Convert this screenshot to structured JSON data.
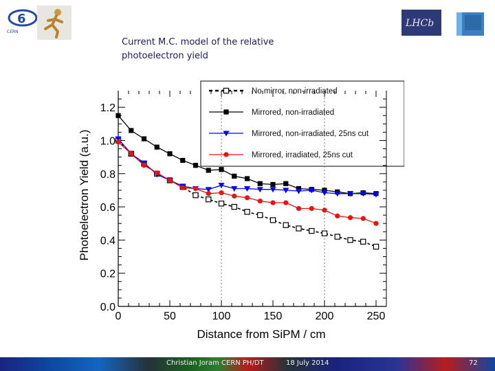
{
  "slide": {
    "title": "Current M.C. model of the relative photoelectron yield",
    "footer_author": "Christian Joram   CERN  PH/DT",
    "footer_date": "18 July 2014",
    "page_number": "72",
    "logo_lhcb_text": "LHCb",
    "logo_cern_text": "CERN"
  },
  "colors": {
    "title": "#1a1a66",
    "series_black": "#000000",
    "series_blue": "#0000ff",
    "series_red": "#ee1111"
  },
  "chart_data": {
    "type": "line",
    "title": "",
    "xlabel": "Distance from SiPM  / cm",
    "ylabel": "Photoelectron Yield (a.u.)",
    "xlim": [
      0,
      260
    ],
    "ylim": [
      0,
      1.3
    ],
    "x_ticks": [
      0,
      50,
      100,
      150,
      200,
      250
    ],
    "y_ticks": [
      "0.0",
      "0.2",
      "0.4",
      "0.6",
      "0.8",
      "1.0",
      "1.2"
    ],
    "grid": "dashed at x=100 and x=200",
    "legend_position": "top-right",
    "x": [
      0,
      12.5,
      25,
      37.5,
      50,
      62.5,
      75,
      87.5,
      100,
      112.5,
      125,
      137.5,
      150,
      162.5,
      175,
      187.5,
      200,
      212.5,
      225,
      237.5,
      250
    ],
    "series": [
      {
        "name": "No mirror, non-irradiated",
        "marker": "open-square",
        "style": "dashed",
        "color": "#000000",
        "values": [
          1.0,
          0.92,
          0.86,
          0.8,
          0.76,
          0.72,
          0.67,
          0.645,
          0.62,
          0.6,
          0.57,
          0.55,
          0.52,
          0.49,
          0.47,
          0.455,
          0.44,
          0.42,
          0.4,
          0.39,
          0.36
        ]
      },
      {
        "name": "Mirrored, non-irradiated",
        "marker": "filled-square",
        "style": "solid",
        "color": "#000000",
        "values": [
          1.15,
          1.06,
          1.01,
          0.96,
          0.92,
          0.88,
          0.85,
          0.82,
          0.825,
          0.785,
          0.77,
          0.74,
          0.735,
          0.74,
          0.71,
          0.705,
          0.7,
          0.69,
          0.68,
          0.685,
          0.68
        ]
      },
      {
        "name": "Mirrored, non-irradiated, 25ns cut",
        "marker": "filled-triangle-down",
        "style": "solid",
        "color": "#0000ff",
        "values": [
          1.01,
          0.92,
          0.865,
          0.795,
          0.76,
          0.725,
          0.71,
          0.705,
          0.73,
          0.71,
          0.71,
          0.705,
          0.705,
          0.7,
          0.695,
          0.7,
          0.685,
          0.68,
          0.68,
          0.68,
          0.675
        ]
      },
      {
        "name": "Mirrored, irradiated, 25ns cut",
        "marker": "filled-circle",
        "style": "solid",
        "color": "#ee1111",
        "values": [
          0.99,
          0.92,
          0.85,
          0.805,
          0.76,
          0.715,
          0.71,
          0.68,
          0.685,
          0.665,
          0.655,
          0.635,
          0.625,
          0.625,
          0.59,
          0.59,
          0.58,
          0.545,
          0.535,
          0.53,
          0.5
        ]
      }
    ]
  }
}
